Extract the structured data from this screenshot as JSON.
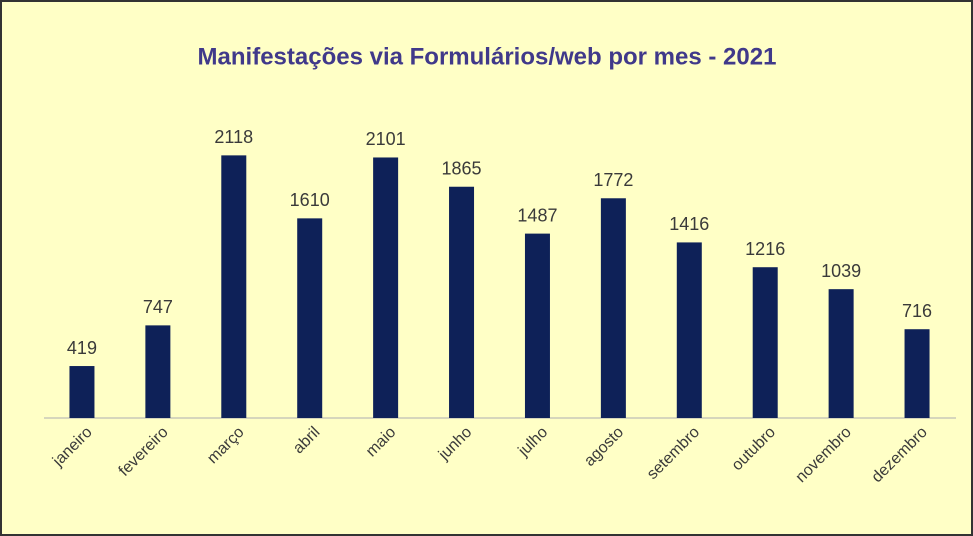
{
  "chart_data": {
    "type": "bar",
    "title": "Manifestações via Formulários/web por mes - 2021",
    "categories": [
      "janeiro",
      "fevereiro",
      "março",
      "abril",
      "maio",
      "junho",
      "julho",
      "agosto",
      "setembro",
      "outubro",
      "novembro",
      "dezembro"
    ],
    "values": [
      419,
      747,
      2118,
      1610,
      2101,
      1865,
      1487,
      1772,
      1416,
      1216,
      1039,
      716
    ],
    "color": "#0e2158",
    "ylim": [
      0,
      2500
    ]
  }
}
